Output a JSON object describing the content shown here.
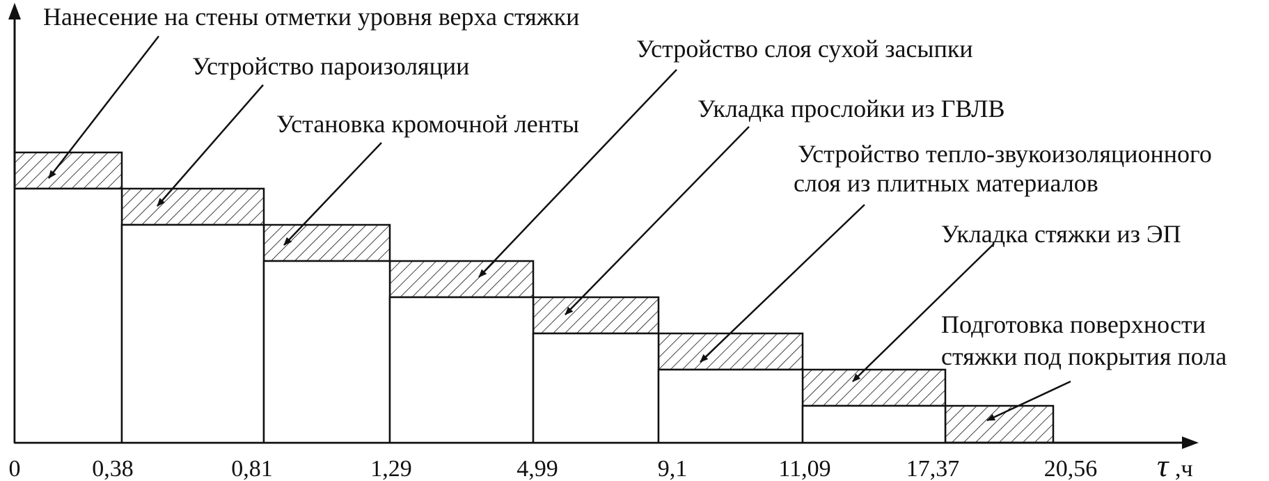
{
  "diagram": {
    "axis_unit_symbol": "τ",
    "axis_unit_suffix": ",ч",
    "ticks": [
      "0",
      "0,38",
      "0,81",
      "1,29",
      "4,99",
      "9,1",
      "11,09",
      "17,37",
      "20,56"
    ],
    "labels": [
      "Нанесение на стены отметки уровня верха стяжки",
      "Устройство пароизоляции",
      "Установка кромочной ленты",
      "Устройство слоя сухой засыпки",
      "Укладка прослойки из ГВЛВ",
      "Устройство тепло-звукоизоляционного",
      "слоя  из плитных материалов",
      "Укладка стяжки из ЭП",
      "Подготовка поверхности",
      "стяжки под покрытия пола"
    ]
  }
}
